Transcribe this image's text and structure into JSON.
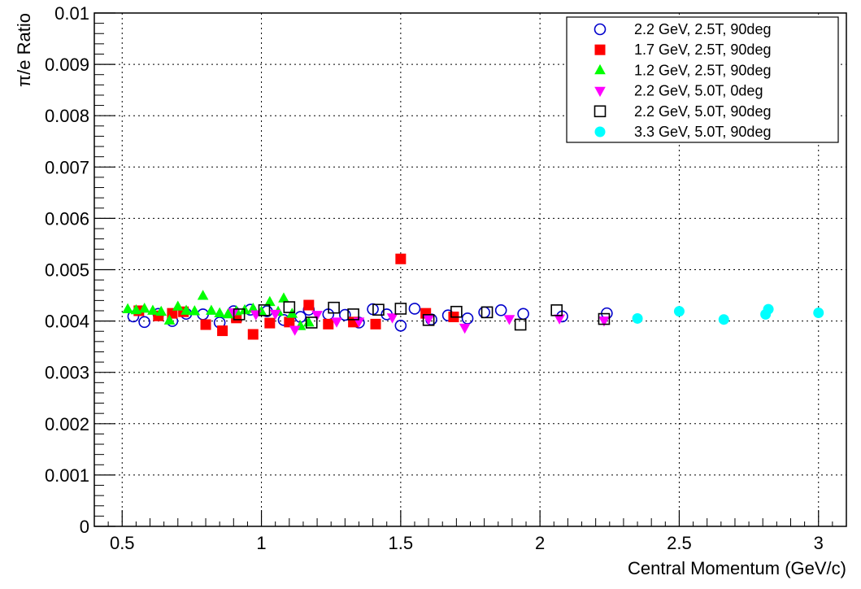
{
  "chart_data": {
    "type": "scatter",
    "xlabel": "Central Momentum (GeV/c)",
    "ylabel": "π/e Ratio",
    "xlim": [
      0.4,
      3.1
    ],
    "ylim": [
      0,
      0.01
    ],
    "x_ticks": [
      {
        "value": 0.5,
        "label": "0.5"
      },
      {
        "value": 1,
        "label": "1"
      },
      {
        "value": 1.5,
        "label": "1.5"
      },
      {
        "value": 2,
        "label": "2"
      },
      {
        "value": 2.5,
        "label": "2.5"
      },
      {
        "value": 3,
        "label": "3"
      }
    ],
    "y_ticks": [
      {
        "value": 0,
        "label": "0"
      },
      {
        "value": 0.001,
        "label": "0.001"
      },
      {
        "value": 0.002,
        "label": "0.002"
      },
      {
        "value": 0.003,
        "label": "0.003"
      },
      {
        "value": 0.004,
        "label": "0.004"
      },
      {
        "value": 0.005,
        "label": "0.005"
      },
      {
        "value": 0.006,
        "label": "0.006"
      },
      {
        "value": 0.007,
        "label": "0.007"
      },
      {
        "value": 0.008,
        "label": "0.008"
      },
      {
        "value": 0.009,
        "label": "0.009"
      },
      {
        "value": 0.01,
        "label": "0.01"
      }
    ],
    "grid": true,
    "legend_position": "top-right",
    "series": [
      {
        "name": "2.2 GeV, 2.5T, 90deg",
        "marker": "circle-open",
        "color": "#0000cc",
        "points": [
          [
            0.54,
            0.00409
          ],
          [
            0.58,
            0.00398
          ],
          [
            0.63,
            0.00414
          ],
          [
            0.68,
            0.004
          ],
          [
            0.73,
            0.00414
          ],
          [
            0.79,
            0.00413
          ],
          [
            0.85,
            0.00397
          ],
          [
            0.9,
            0.00419
          ],
          [
            0.96,
            0.00422
          ],
          [
            1.02,
            0.00419
          ],
          [
            1.08,
            0.00402
          ],
          [
            1.14,
            0.00408
          ],
          [
            1.17,
            0.00422
          ],
          [
            1.24,
            0.00413
          ],
          [
            1.3,
            0.00412
          ],
          [
            1.35,
            0.00397
          ],
          [
            1.4,
            0.00423
          ],
          [
            1.45,
            0.00413
          ],
          [
            1.5,
            0.00391
          ],
          [
            1.55,
            0.00424
          ],
          [
            1.61,
            0.00403
          ],
          [
            1.67,
            0.00411
          ],
          [
            1.74,
            0.00405
          ],
          [
            1.8,
            0.00417
          ],
          [
            1.86,
            0.00421
          ],
          [
            1.94,
            0.00414
          ],
          [
            2.08,
            0.00409
          ],
          [
            2.24,
            0.00415
          ]
        ]
      },
      {
        "name": "1.7 GeV, 2.5T, 90deg",
        "marker": "square-filled",
        "color": "#ff0000",
        "points": [
          [
            0.56,
            0.0042
          ],
          [
            0.63,
            0.0041
          ],
          [
            0.68,
            0.00415
          ],
          [
            0.72,
            0.00418
          ],
          [
            0.8,
            0.00393
          ],
          [
            0.86,
            0.00381
          ],
          [
            0.91,
            0.00406
          ],
          [
            0.97,
            0.00374
          ],
          [
            1.03,
            0.00396
          ],
          [
            1.1,
            0.00398
          ],
          [
            1.17,
            0.00431
          ],
          [
            1.24,
            0.00394
          ],
          [
            1.33,
            0.00398
          ],
          [
            1.41,
            0.00394
          ],
          [
            1.5,
            0.00521
          ],
          [
            1.59,
            0.00415
          ],
          [
            1.69,
            0.00408
          ]
        ]
      },
      {
        "name": "1.2 GeV, 2.5T, 90deg",
        "marker": "triangle-up-filled",
        "color": "#00ff00",
        "points": [
          [
            0.52,
            0.00423
          ],
          [
            0.55,
            0.00421
          ],
          [
            0.58,
            0.00424
          ],
          [
            0.61,
            0.0042
          ],
          [
            0.64,
            0.00418
          ],
          [
            0.67,
            0.00401
          ],
          [
            0.7,
            0.00428
          ],
          [
            0.73,
            0.0042
          ],
          [
            0.76,
            0.00419
          ],
          [
            0.79,
            0.00449
          ],
          [
            0.82,
            0.0042
          ],
          [
            0.85,
            0.00415
          ],
          [
            0.88,
            0.00413
          ],
          [
            0.91,
            0.00419
          ],
          [
            0.94,
            0.00421
          ],
          [
            0.97,
            0.00424
          ],
          [
            1.0,
            0.00418
          ],
          [
            1.03,
            0.00437
          ],
          [
            1.06,
            0.00418
          ],
          [
            1.08,
            0.00444
          ],
          [
            1.11,
            0.00414
          ],
          [
            1.14,
            0.0039
          ],
          [
            1.17,
            0.00397
          ]
        ]
      },
      {
        "name": "2.2 GeV, 5.0T, 0deg",
        "marker": "triangle-down-filled",
        "color": "#ff00ff",
        "points": [
          [
            0.9,
            0.00417
          ],
          [
            0.98,
            0.00413
          ],
          [
            1.05,
            0.00414
          ],
          [
            1.12,
            0.00383
          ],
          [
            1.2,
            0.00412
          ],
          [
            1.27,
            0.00399
          ],
          [
            1.35,
            0.00399
          ],
          [
            1.47,
            0.00407
          ],
          [
            1.6,
            0.00404
          ],
          [
            1.73,
            0.00387
          ],
          [
            1.89,
            0.00404
          ],
          [
            2.07,
            0.00405
          ],
          [
            2.23,
            0.00401
          ]
        ]
      },
      {
        "name": "2.2 GeV, 5.0T, 90deg",
        "marker": "square-open",
        "color": "#000000",
        "points": [
          [
            0.92,
            0.00413
          ],
          [
            1.01,
            0.00421
          ],
          [
            1.1,
            0.00427
          ],
          [
            1.18,
            0.00397
          ],
          [
            1.26,
            0.00426
          ],
          [
            1.33,
            0.00413
          ],
          [
            1.42,
            0.00422
          ],
          [
            1.5,
            0.00424
          ],
          [
            1.6,
            0.00402
          ],
          [
            1.7,
            0.00418
          ],
          [
            1.81,
            0.00417
          ],
          [
            1.93,
            0.00393
          ],
          [
            2.06,
            0.00421
          ],
          [
            2.23,
            0.00404
          ]
        ]
      },
      {
        "name": "3.3 GeV, 5.0T, 90deg",
        "marker": "circle-filled",
        "color": "#00ffff",
        "points": [
          [
            2.35,
            0.00405
          ],
          [
            2.5,
            0.00419
          ],
          [
            2.66,
            0.00403
          ],
          [
            2.81,
            0.00413
          ],
          [
            2.82,
            0.00423
          ],
          [
            3.0,
            0.00416
          ]
        ]
      }
    ]
  }
}
